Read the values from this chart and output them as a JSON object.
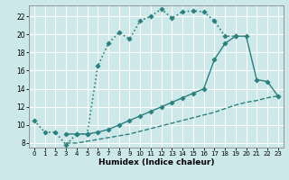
{
  "xlabel": "Humidex (Indice chaleur)",
  "bg_color": "#cde8e8",
  "line_color": "#2a7f7f",
  "grid_color": "#ffffff",
  "ylim": [
    7.5,
    23.2
  ],
  "xlim": [
    -0.5,
    23.5
  ],
  "yticks": [
    8,
    10,
    12,
    14,
    16,
    18,
    20,
    22
  ],
  "xticks": [
    0,
    1,
    2,
    3,
    4,
    5,
    6,
    7,
    8,
    9,
    10,
    11,
    12,
    13,
    14,
    15,
    16,
    17,
    18,
    19,
    20,
    21,
    22,
    23
  ],
  "series": [
    {
      "x": [
        0,
        1,
        2,
        3,
        4,
        5,
        6,
        7,
        8,
        9,
        10,
        11,
        12,
        13,
        14,
        15,
        16,
        17,
        18,
        19
      ],
      "y": [
        10.5,
        9.2,
        9.2,
        7.8,
        9.0,
        9.0,
        16.5,
        19.0,
        20.2,
        19.5,
        21.5,
        22.0,
        22.8,
        21.8,
        22.5,
        22.6,
        22.5,
        21.5,
        19.8,
        19.8
      ],
      "linestyle": "dotted",
      "marker": true,
      "linewidth": 1.2,
      "markersize": 2.8
    },
    {
      "x": [
        3,
        4,
        5,
        6,
        7,
        8,
        9,
        10,
        11,
        12,
        13,
        14,
        15,
        16,
        17,
        18,
        19,
        20,
        21,
        22,
        23
      ],
      "y": [
        9.0,
        9.0,
        9.0,
        9.2,
        9.5,
        10.0,
        10.5,
        11.0,
        11.5,
        12.0,
        12.5,
        13.0,
        13.5,
        14.0,
        17.2,
        19.0,
        19.8,
        19.8,
        15.0,
        14.8,
        13.2
      ],
      "linestyle": "solid",
      "marker": true,
      "linewidth": 1.0,
      "markersize": 2.8
    },
    {
      "x": [
        3,
        4,
        5,
        6,
        7,
        8,
        9,
        10,
        11,
        12,
        13,
        14,
        15,
        16,
        17,
        18,
        19,
        20,
        21,
        22,
        23
      ],
      "y": [
        8.0,
        8.0,
        8.2,
        8.4,
        8.6,
        8.8,
        9.0,
        9.3,
        9.6,
        9.9,
        10.2,
        10.5,
        10.8,
        11.1,
        11.4,
        11.8,
        12.2,
        12.5,
        12.7,
        13.0,
        13.2
      ],
      "linestyle": "dashed",
      "marker": false,
      "linewidth": 1.0,
      "markersize": 0
    }
  ]
}
